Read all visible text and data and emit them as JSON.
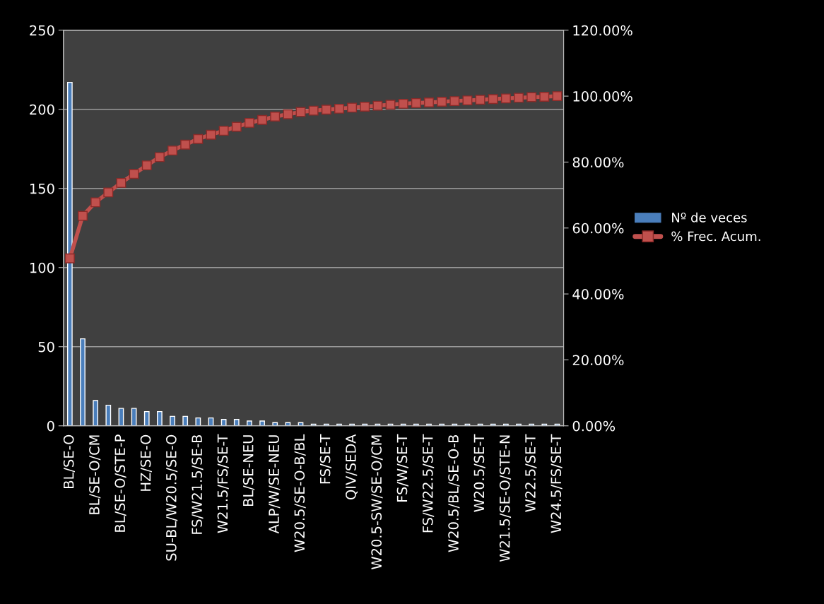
{
  "chart_data": {
    "type": "bar",
    "categories": [
      "BL/SE-O",
      null,
      "BL/SE-O/CM",
      null,
      "BL/SE-O/STE-P",
      null,
      "HZ/SE-O",
      null,
      "SU-BL/W20.5/SE-O",
      null,
      "FS/W21.5/SE-B",
      null,
      "W21.5/FS/SE-T",
      null,
      "BL/SE-NEU",
      null,
      "ALP/W/SE-NEU",
      null,
      "W20.5/SE-O-B/BL",
      null,
      "FS/SE-T",
      null,
      "QIV/SEDA",
      null,
      "W20.5-SW/SE-O/CM",
      null,
      "FS/W/SE-T",
      null,
      "FS/W22.5/SE-T",
      null,
      "W20.5/BL/SE-O-B",
      null,
      "W20.5/SE-T",
      null,
      "W21.5/SE-O/STE-N",
      null,
      "W22.5/SE-T",
      null,
      "W24.5/FS/SE-T"
    ],
    "series": [
      {
        "name": "Nº de veces",
        "color": "#4a7ebb",
        "values": [
          217,
          55,
          16,
          13,
          11,
          11,
          9,
          9,
          6,
          6,
          5,
          5,
          4,
          4,
          3,
          3,
          2,
          2,
          2,
          1,
          1,
          1,
          1,
          1,
          1,
          1,
          1,
          1,
          1,
          1,
          1,
          1,
          1,
          1,
          1,
          1,
          1,
          1,
          1
        ]
      },
      {
        "name": "% Frec. Acum.",
        "type": "line",
        "axis": "y2",
        "color": "#c0504d",
        "marker": "square",
        "values": [
          50.8,
          63.7,
          67.8,
          70.8,
          73.7,
          76.4,
          79.0,
          81.5,
          83.5,
          85.3,
          87.0,
          88.3,
          89.5,
          90.7,
          91.9,
          92.8,
          93.8,
          94.5,
          95.2,
          95.6,
          95.9,
          96.2,
          96.5,
          96.8,
          97.1,
          97.4,
          97.7,
          97.9,
          98.1,
          98.3,
          98.5,
          98.7,
          98.9,
          99.1,
          99.3,
          99.5,
          99.7,
          99.8,
          100
        ]
      }
    ],
    "ylim": [
      0,
      250
    ],
    "yticks": [
      0,
      50,
      100,
      150,
      200,
      250
    ],
    "y2lim": [
      0,
      120
    ],
    "y2ticks": [
      {
        "value": 0,
        "label": "0.00%"
      },
      {
        "value": 20,
        "label": "20.00%"
      },
      {
        "value": 40,
        "label": "40.00%"
      },
      {
        "value": 60,
        "label": "60.00%"
      },
      {
        "value": 80,
        "label": "80.00%"
      },
      {
        "value": 100,
        "label": "100.00%"
      },
      {
        "value": 120,
        "label": "120.00%"
      }
    ],
    "grid": "y",
    "legend": "right"
  }
}
